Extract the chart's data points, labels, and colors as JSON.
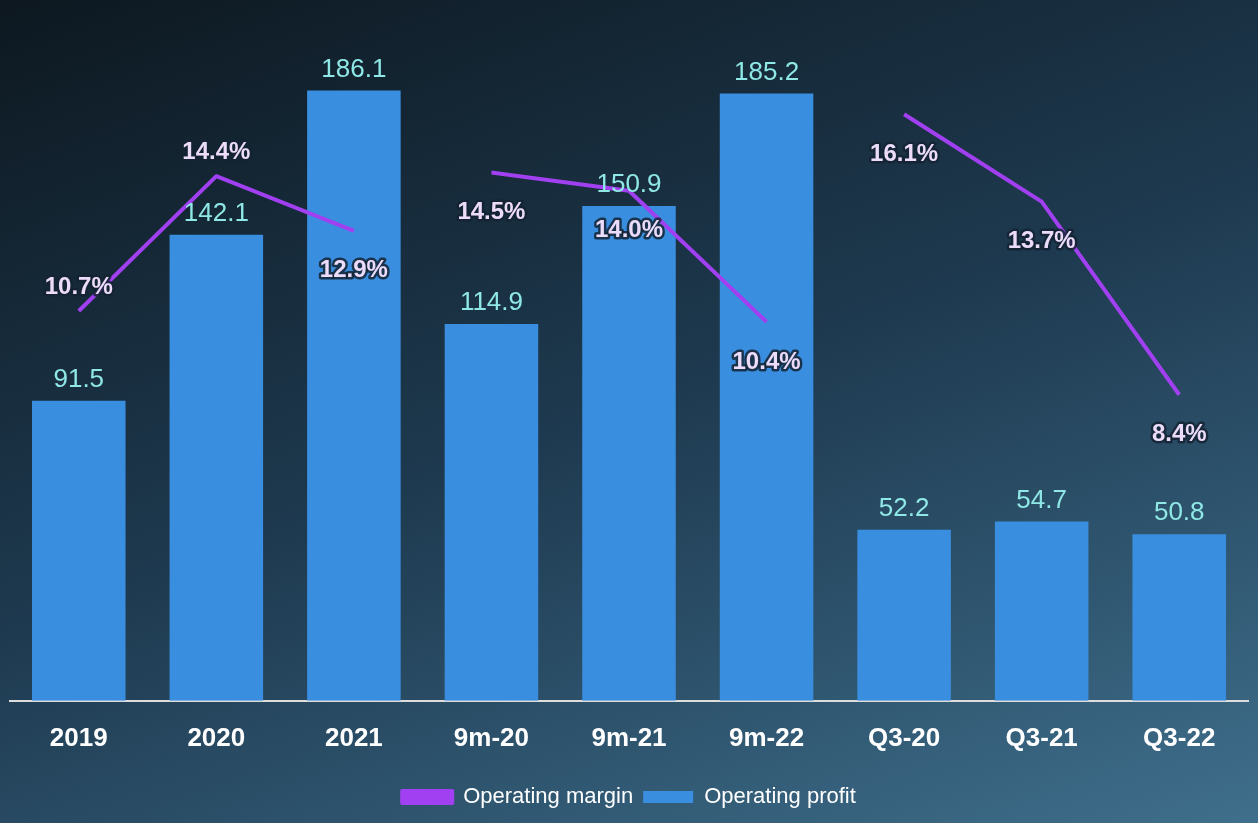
{
  "chart_data": {
    "type": "bar",
    "categories": [
      "2019",
      "2020",
      "2021",
      "9m-20",
      "9m-21",
      "9m-22",
      "Q3-20",
      "Q3-21",
      "Q3-22"
    ],
    "series": [
      {
        "name": "Operating profit",
        "color": "#3a8ee0",
        "values": [
          91.5,
          142.1,
          186.1,
          114.9,
          150.9,
          185.2,
          52.2,
          54.7,
          50.8
        ]
      },
      {
        "name": "Operating margin",
        "type": "line",
        "axis": "y2",
        "color": "#a040f0",
        "values": [
          10.7,
          14.4,
          12.9,
          null,
          null,
          null,
          null,
          null,
          null
        ],
        "value_labels": [
          "10.7%",
          "14.4%",
          "12.9%",
          null,
          null,
          null,
          null,
          null,
          null
        ]
      },
      {
        "type": "line",
        "axis": "y2",
        "color": "#a040f0",
        "values": [
          null,
          null,
          null,
          14.5,
          14.0,
          10.4,
          null,
          null,
          null
        ],
        "value_labels": [
          null,
          null,
          null,
          "14.5%",
          "14.0%",
          "10.4%",
          null,
          null,
          null
        ]
      },
      {
        "type": "line",
        "axis": "y2",
        "color": "#a040f0",
        "values": [
          null,
          null,
          null,
          null,
          null,
          null,
          16.1,
          13.7,
          8.4
        ],
        "value_labels": [
          null,
          null,
          null,
          null,
          null,
          null,
          "16.1%",
          "13.7%",
          "8.4%"
        ]
      }
    ],
    "data_labels": true,
    "legend": "bottom",
    "grid": false,
    "tick_labels": "x",
    "marker": "none"
  }
}
